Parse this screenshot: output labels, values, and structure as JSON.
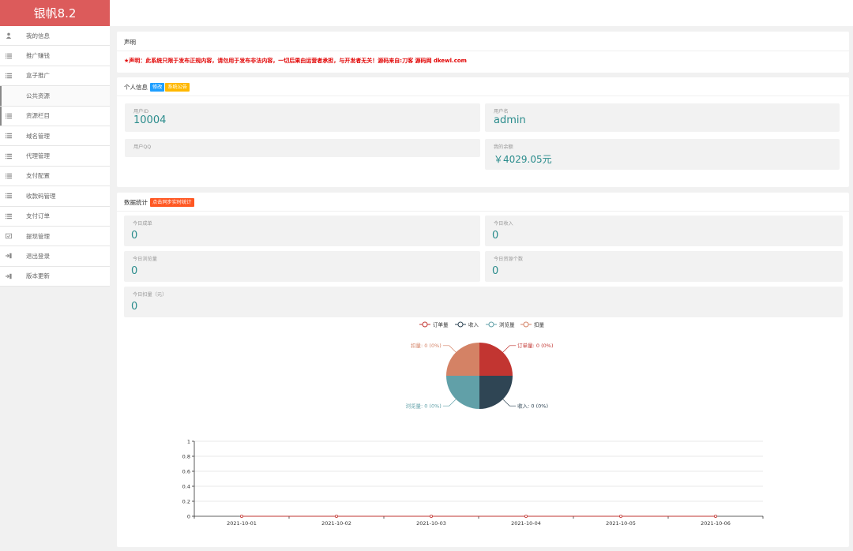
{
  "brand": {
    "title": "银帆8.2"
  },
  "sidebar": {
    "items": [
      {
        "label": "我的信息",
        "icon": "user-icon"
      },
      {
        "label": "推广赚钱",
        "icon": "list-icon"
      },
      {
        "label": "盒子推广",
        "icon": "list-icon"
      },
      {
        "label": "公共资源",
        "icon": ""
      },
      {
        "label": "资源栏目",
        "icon": "list-icon"
      },
      {
        "label": "域名管理",
        "icon": "list-icon"
      },
      {
        "label": "代理管理",
        "icon": "list-icon"
      },
      {
        "label": "支付配置",
        "icon": "list-icon"
      },
      {
        "label": "收款码管理",
        "icon": "list-icon"
      },
      {
        "label": "支付订单",
        "icon": "list-icon"
      },
      {
        "label": "提现管理",
        "icon": "wallet-icon"
      },
      {
        "label": "退出登录",
        "icon": "logout-icon"
      },
      {
        "label": "版本更新",
        "icon": "logout-icon"
      }
    ]
  },
  "statement": {
    "title": "声明",
    "text": "★声明：此系统只限于发布正规内容，请勿用于发布非法内容，一切后果由运营者承担，与开发者无关！源码来自:刀客 源码网 dkewl.com"
  },
  "profile": {
    "title": "个人信息",
    "edit_tag": "修改",
    "notice_tag": "系统公告",
    "user_id_label": "用户ID",
    "user_id": "10004",
    "username_label": "用户名",
    "username": "admin",
    "qq_label": "用户QQ",
    "qq": "",
    "balance_label": "我的余额",
    "balance": "￥4029.05元"
  },
  "stats": {
    "title": "数据统计",
    "sync_tag": "点击同步实时统计",
    "today_orders_label": "今日成单",
    "today_orders": "0",
    "today_income_label": "今日收入",
    "today_income": "0",
    "today_views_label": "今日浏览量",
    "today_views": "0",
    "today_resources_label": "今日资源个数",
    "today_resources": "0",
    "today_deduct_label": "今日扣量（元）",
    "today_deduct": "0"
  },
  "colors": {
    "brand": "#dc5b5b",
    "value": "#2a8c8c",
    "pie_orders": "#c23531",
    "pie_income": "#2f4554",
    "pie_views": "#61a0a8",
    "pie_deduct": "#d48265"
  },
  "chart_data": [
    {
      "type": "pie",
      "legend": [
        "订单量",
        "收入",
        "浏览量",
        "扣量"
      ],
      "labels": [
        "订单量: 0 (0%)",
        "收入: 0 (0%)",
        "浏览量: 0 (0%)",
        "扣量: 0 (0%)"
      ],
      "values": [
        0,
        0,
        0,
        0
      ],
      "legend_position": "top"
    },
    {
      "type": "line",
      "categories": [
        "2021-10-01",
        "2021-10-02",
        "2021-10-03",
        "2021-10-04",
        "2021-10-05",
        "2021-10-06"
      ],
      "series": [
        {
          "values": [
            0,
            0,
            0,
            0,
            0,
            0
          ]
        }
      ],
      "yticks": [
        "0",
        "0.2",
        "0.4",
        "0.6",
        "0.8",
        "1"
      ],
      "ylim": [
        0,
        1
      ],
      "grid": true
    }
  ]
}
